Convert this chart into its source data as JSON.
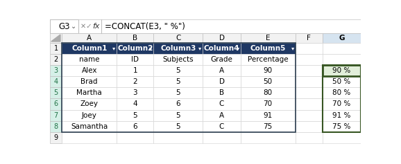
{
  "formula_bar_cell": "G3",
  "formula_bar_formula": "=CONCAT(E3, \" %\")",
  "col_letters": [
    "A",
    "B",
    "C",
    "D",
    "E",
    "F",
    "G"
  ],
  "header_row": [
    "Column1",
    "Column2",
    "Column3",
    "Column4",
    "Column5",
    "",
    ""
  ],
  "sub_header": [
    "name",
    "ID",
    "Subjects",
    "Grade",
    "Percentage",
    "",
    ""
  ],
  "data": [
    [
      "Alex",
      "1",
      "5",
      "A",
      "90",
      "",
      "90 %"
    ],
    [
      "Brad",
      "2",
      "5",
      "D",
      "50",
      "",
      "50 %"
    ],
    [
      "Martha",
      "3",
      "5",
      "B",
      "80",
      "",
      "80 %"
    ],
    [
      "Zoey",
      "4",
      "6",
      "C",
      "70",
      "",
      "70 %"
    ],
    [
      "Joey",
      "5",
      "5",
      "A",
      "91",
      "",
      "91 %"
    ],
    [
      "Samantha",
      "6",
      "5",
      "C",
      "75",
      "",
      "75 %"
    ]
  ],
  "bg_color": "#FFFFFF",
  "header_bg": "#1F3864",
  "header_fg": "#FFFFFF",
  "grid_color": "#D0D0D0",
  "col_header_bg": "#F2F2F2",
  "active_col_header_bg": "#D6E4F0",
  "row_header_bg": "#F2F2F2",
  "active_row_header_bg": "#D6F0E8",
  "selected_cell_bg": "#E2EFDA",
  "g_border_color": "#375623",
  "table_border_color": "#2E4053",
  "formula_bar_bg": "#FFFFFF"
}
